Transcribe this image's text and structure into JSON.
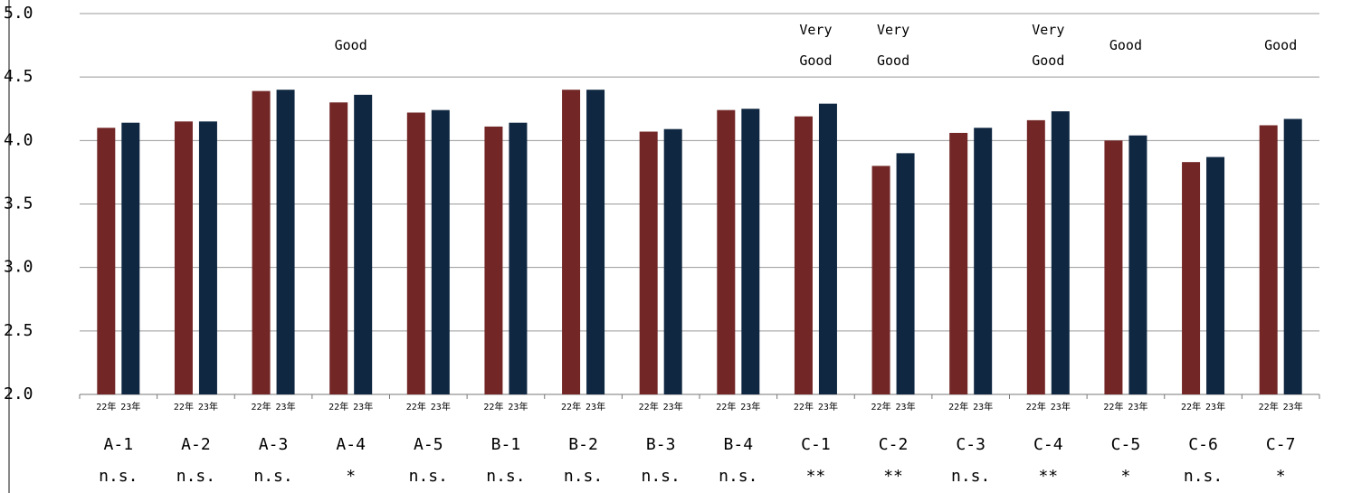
{
  "chart_data": {
    "type": "bar",
    "categories": [
      "A-1",
      "A-2",
      "A-3",
      "A-4",
      "A-5",
      "B-1",
      "B-2",
      "B-3",
      "B-4",
      "C-1",
      "C-2",
      "C-3",
      "C-4",
      "C-5",
      "C-6",
      "C-7"
    ],
    "series": [
      {
        "name": "22年",
        "color": "#722626",
        "values": [
          4.1,
          4.15,
          4.39,
          4.3,
          4.22,
          4.11,
          4.4,
          4.07,
          4.24,
          4.19,
          3.8,
          4.06,
          4.16,
          4.0,
          3.83,
          4.12
        ]
      },
      {
        "name": "23年",
        "color": "#0f2741",
        "values": [
          4.14,
          4.15,
          4.4,
          4.36,
          4.24,
          4.14,
          4.4,
          4.09,
          4.25,
          4.29,
          3.9,
          4.1,
          4.23,
          4.04,
          3.87,
          4.17
        ]
      }
    ],
    "significance": [
      "n.s.",
      "n.s.",
      "n.s.",
      "*",
      "n.s.",
      "n.s.",
      "n.s.",
      "n.s.",
      "n.s.",
      "**",
      "**",
      "n.s.",
      "**",
      "*",
      "n.s.",
      "*"
    ],
    "annotations": [
      null,
      null,
      null,
      "Good",
      null,
      null,
      null,
      null,
      null,
      "Very Good",
      "Very Good",
      null,
      "Very Good",
      "Good",
      null,
      "Good"
    ],
    "ylim": [
      2.0,
      5.0
    ],
    "yticks": [
      {
        "value": 2.0,
        "label": "2.0"
      },
      2.5,
      {
        "value": 3.0,
        "label": "3.0"
      },
      3.5,
      {
        "value": 4.0,
        "label": "4.0"
      },
      4.5,
      {
        "value": 5.0,
        "label": "5.0"
      }
    ],
    "grid": true
  }
}
